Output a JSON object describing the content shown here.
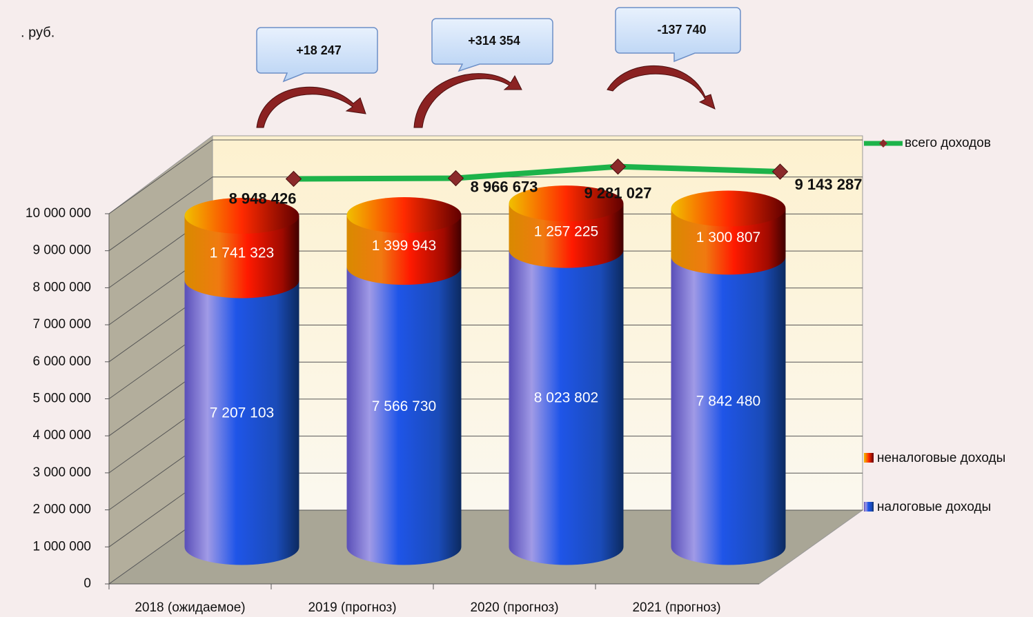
{
  "chart_data": {
    "type": "bar",
    "unit_label": ". руб.",
    "categories": [
      "2018 (ожидаемое)",
      "2019 (прогноз)",
      "2020 (прогноз)",
      "2021 (прогноз)"
    ],
    "series": [
      {
        "name": "налоговые доходы",
        "color": "#2a6fd6",
        "values": [
          7207103,
          7566730,
          8023802,
          7842480
        ],
        "value_labels": [
          "7 207 103",
          "7 566 730",
          "8 023 802",
          "7 842 480"
        ]
      },
      {
        "name": "неналоговые доходы",
        "color": "#ee2a10",
        "values": [
          1741323,
          1399943,
          1257225,
          1300807
        ],
        "value_labels": [
          "1 741 323",
          "1 399 943",
          "1 257 225",
          "1 300 807"
        ]
      },
      {
        "name": "всего доходов",
        "type": "line",
        "color": "#1db34a",
        "values": [
          8948426,
          8966673,
          9281027,
          9143287
        ],
        "value_labels": [
          "8 948 426",
          "8 966 673",
          "9 281 027",
          "9 143 287"
        ]
      }
    ],
    "annotations": [
      "+18 247",
      "+314 354",
      "-137 740"
    ],
    "ylim": [
      0,
      10000000
    ],
    "yticks": [
      0,
      {
        "value": 1000000,
        "label": "1 000 000"
      },
      {
        "value": 2000000,
        "label": "2 000 000"
      },
      {
        "value": 3000000,
        "label": "3 000 000"
      },
      {
        "value": 4000000,
        "label": "4 000 000"
      },
      {
        "value": 5000000,
        "label": "5 000 000"
      },
      {
        "value": 6000000,
        "label": "6 000 000"
      },
      {
        "value": 7000000,
        "label": "7 000 000"
      },
      {
        "value": 8000000,
        "label": "8 000 000"
      },
      {
        "value": 9000000,
        "label": "9 000 000"
      },
      {
        "value": 10000000,
        "label": "10 000 000"
      }
    ],
    "grid": true,
    "legend": "right"
  }
}
